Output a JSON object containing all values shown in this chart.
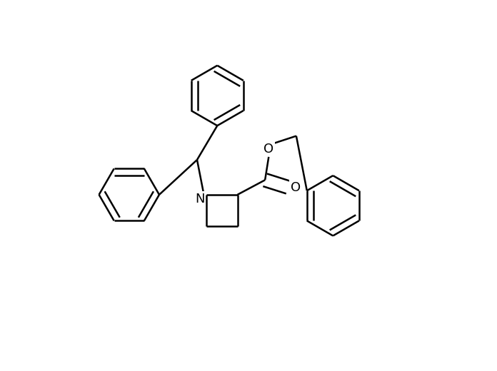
{
  "bg": "#ffffff",
  "lc": "#000000",
  "lw": 1.8,
  "dbo": 0.018,
  "r": 0.085,
  "font_size": 13,
  "xlim": [
    0,
    1
  ],
  "ylim": [
    0,
    1
  ]
}
